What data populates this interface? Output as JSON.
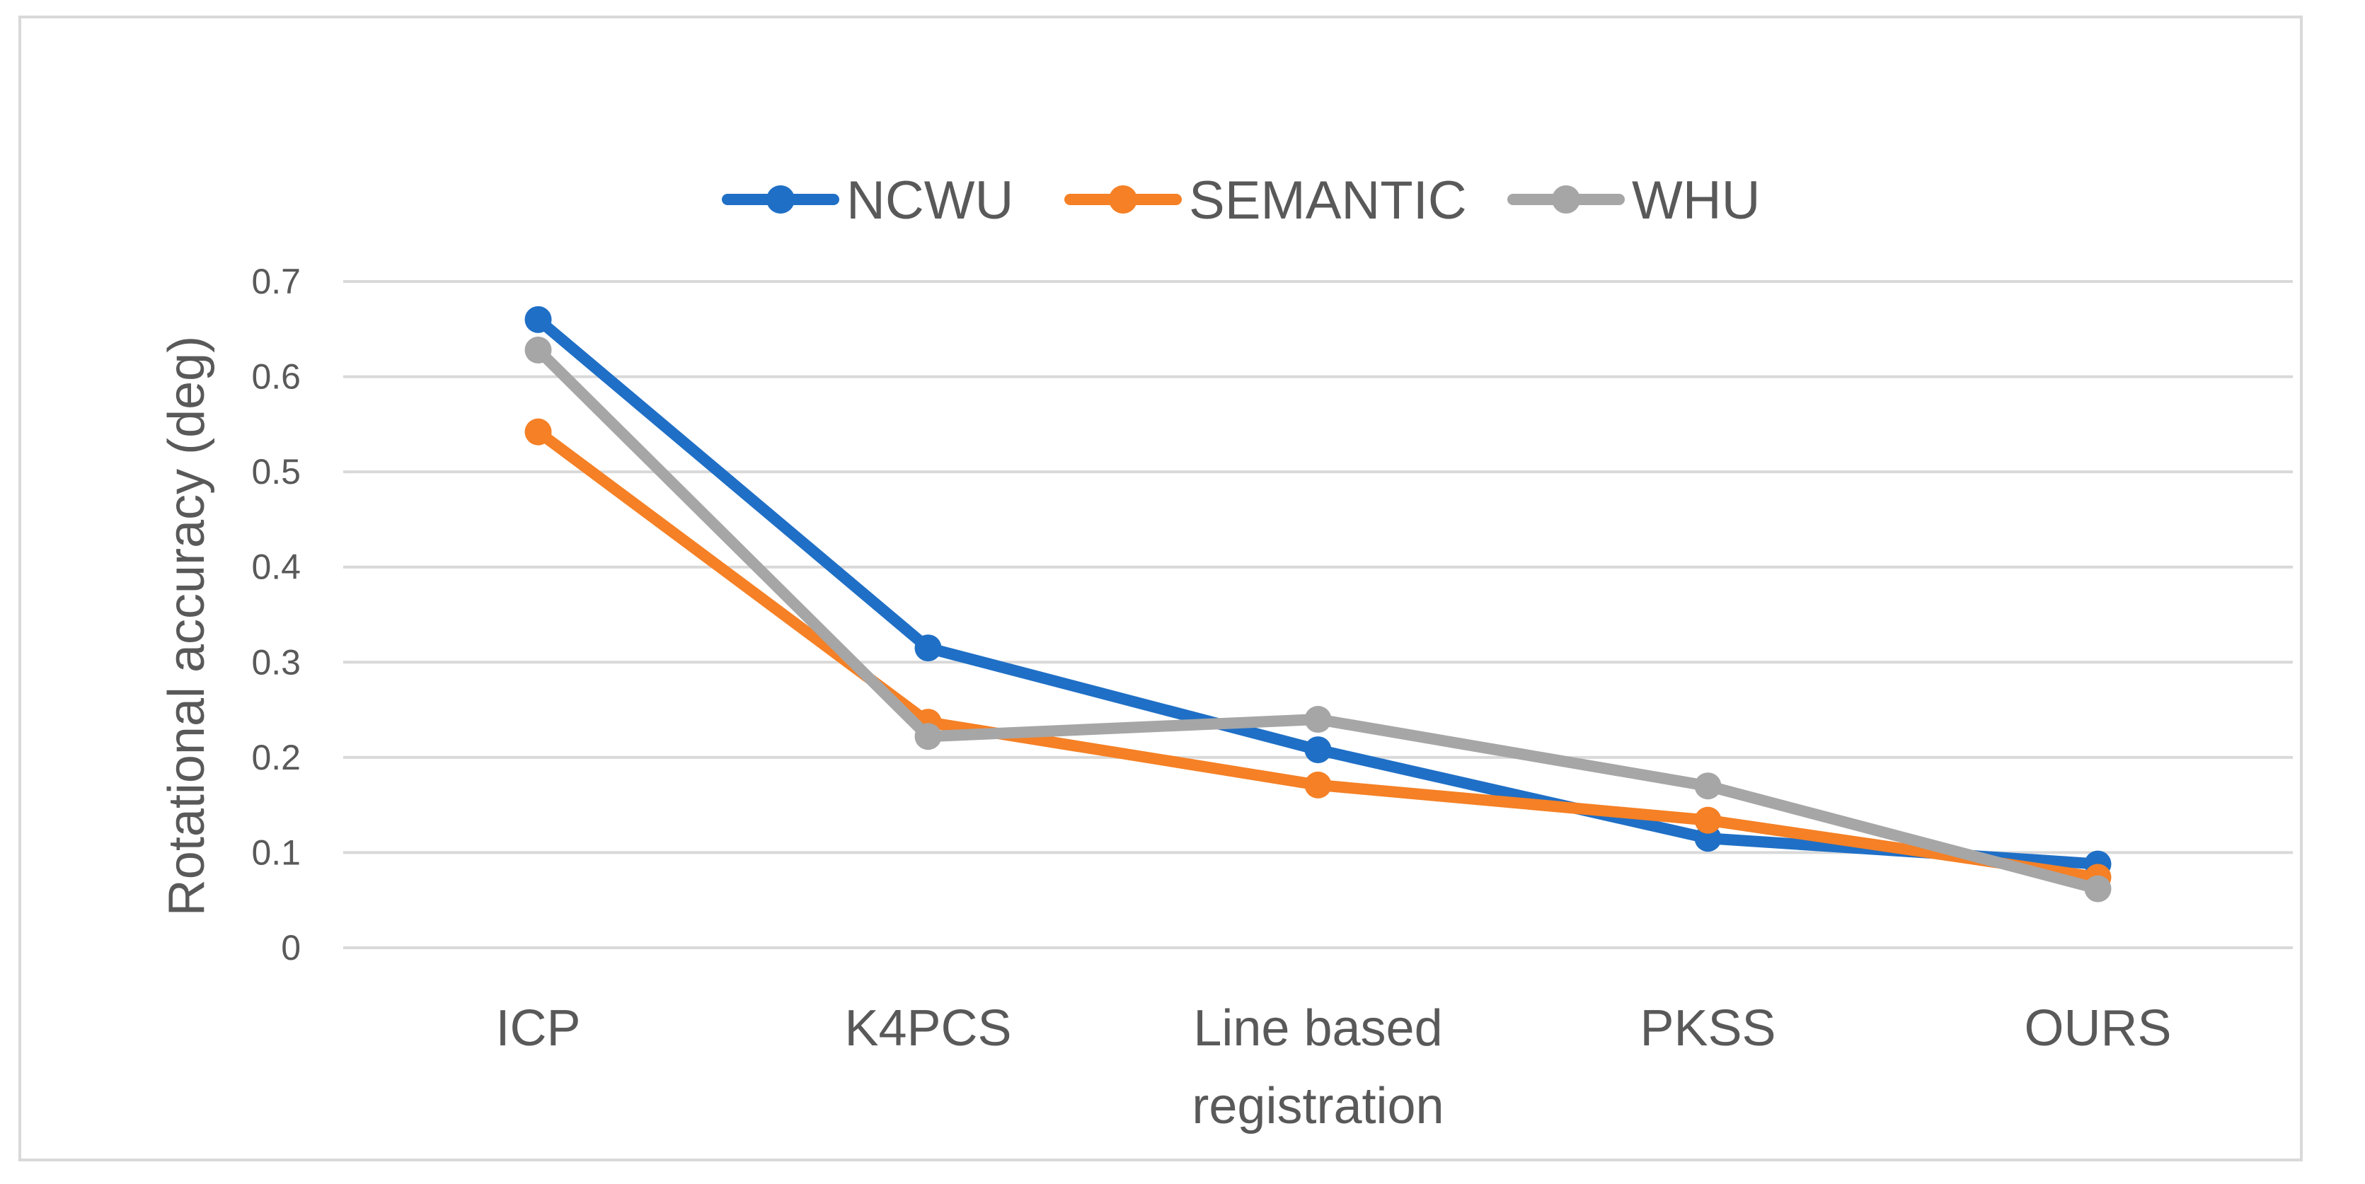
{
  "chart_data": {
    "type": "line",
    "categories": [
      [
        "ICP"
      ],
      [
        "K4PCS"
      ],
      [
        "Line based",
        "registration"
      ],
      [
        "PKSS"
      ],
      [
        "OURS"
      ]
    ],
    "series": [
      {
        "name": "NCWU",
        "color": "#1f6fc6",
        "values": [
          0.66,
          0.315,
          0.208,
          0.115,
          0.088
        ]
      },
      {
        "name": "SEMANTIC",
        "color": "#f58025",
        "values": [
          0.542,
          0.237,
          0.171,
          0.134,
          0.074
        ]
      },
      {
        "name": "WHU",
        "color": "#a6a6a6",
        "values": [
          0.628,
          0.222,
          0.24,
          0.17,
          0.062
        ]
      }
    ],
    "ylabel": "Rotational  accuracy (deg)",
    "ylim": [
      0,
      0.7
    ],
    "yticks": [
      "0",
      "0.1",
      "0.2",
      "0.3",
      "0.4",
      "0.5",
      "0.6",
      "0.7"
    ],
    "grid": true,
    "legend": "top-center"
  }
}
